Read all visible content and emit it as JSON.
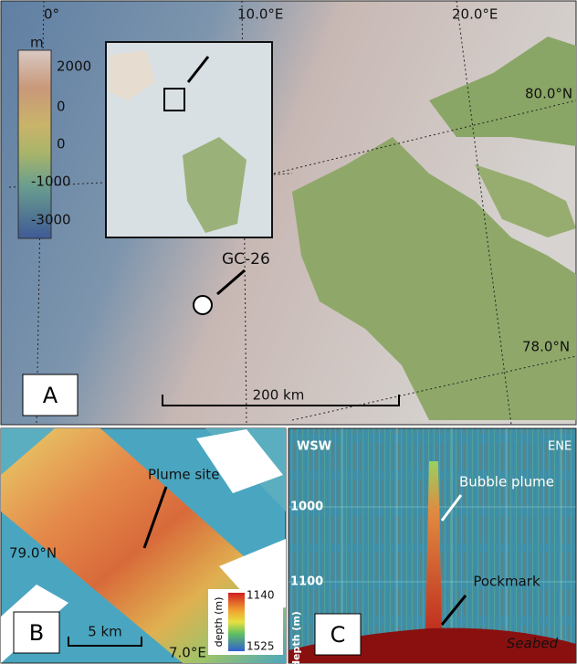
{
  "panel_a": {
    "label": "A",
    "grid_labels": [
      "0°",
      "10.0°E",
      "20.0°E",
      "80.0°N",
      "78.0°N"
    ],
    "legend": {
      "unit": "m",
      "labels": [
        "2000",
        "0",
        "0",
        "-1000",
        "-3000"
      ]
    },
    "site": "GC-26",
    "scale": "200 km"
  },
  "panel_b": {
    "label": "B",
    "annotation": "Plume site",
    "latitude": "79.0°N",
    "longitude": "7.0°E",
    "scale": "5 km",
    "colorbar": {
      "title": "depth (m)",
      "labels": [
        "1140",
        "1525"
      ]
    }
  },
  "panel_c": {
    "label": "C",
    "left": "WSW",
    "right": "ENE",
    "depths": [
      "1000",
      "1100"
    ],
    "axis_title": "depth (m)",
    "annotations": [
      "Bubble plume",
      "Pockmark",
      "Seabed"
    ]
  }
}
